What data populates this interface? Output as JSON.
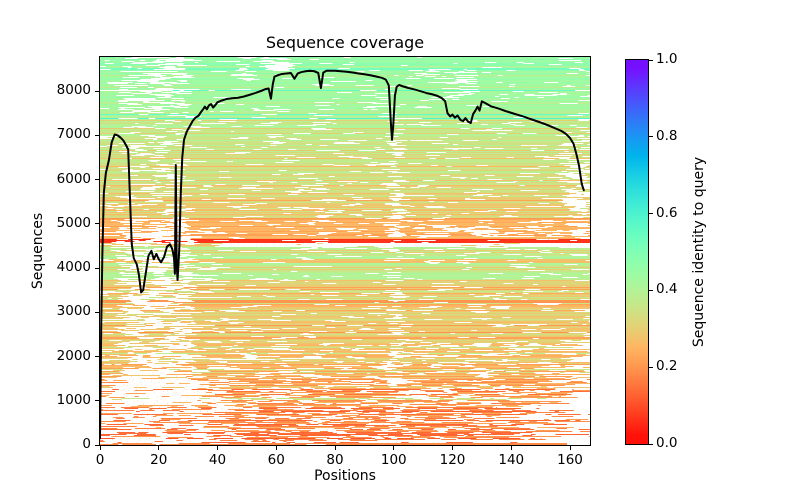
{
  "figure": {
    "title": "Sequence coverage",
    "xlabel": "Positions",
    "ylabel": "Sequences"
  },
  "colorbar": {
    "label": "Sequence identity to query",
    "tick_labels": [
      "0.0",
      "0.2",
      "0.4",
      "0.6",
      "0.8",
      "1.0"
    ],
    "vmin": 0.0,
    "vmax": 1.0
  },
  "chart_data": {
    "type": "heatmap",
    "subtype": "msa-coverage-with-line",
    "title": "Sequence coverage",
    "xlabel": "Positions",
    "ylabel": "Sequences",
    "colorbar_label": "Sequence identity to query",
    "colormap": "rainbow_r",
    "legend_position": "none",
    "grid": false,
    "xlim": [
      0,
      166.8
    ],
    "ylim": [
      0,
      8772
    ],
    "x_ticks": [
      0,
      20,
      40,
      60,
      80,
      100,
      120,
      140,
      160
    ],
    "y_ticks": [
      0,
      1000,
      2000,
      3000,
      4000,
      5000,
      6000,
      7000,
      8000
    ],
    "colorbar_ticks": [
      0,
      0.2,
      0.4,
      0.6,
      0.8,
      1
    ],
    "coverage_line": {
      "name": "number of sequences covering each position",
      "color": "#000000",
      "points": [
        [
          0,
          150
        ],
        [
          0.4,
          2600
        ],
        [
          0.8,
          4300
        ],
        [
          1.3,
          5700
        ],
        [
          2,
          6150
        ],
        [
          3,
          6430
        ],
        [
          4,
          6850
        ],
        [
          5,
          7020
        ],
        [
          6,
          7000
        ],
        [
          7,
          6950
        ],
        [
          8,
          6880
        ],
        [
          9,
          6760
        ],
        [
          9.6,
          6680
        ],
        [
          10.2,
          5600
        ],
        [
          10.8,
          4550
        ],
        [
          11.5,
          4220
        ],
        [
          12.5,
          4090
        ],
        [
          13.2,
          3870
        ],
        [
          14,
          3450
        ],
        [
          14.7,
          3500
        ],
        [
          15.5,
          3850
        ],
        [
          16.5,
          4280
        ],
        [
          17.5,
          4390
        ],
        [
          18.3,
          4200
        ],
        [
          19.2,
          4320
        ],
        [
          20,
          4200
        ],
        [
          20.8,
          4130
        ],
        [
          21.8,
          4250
        ],
        [
          22.8,
          4480
        ],
        [
          23.8,
          4540
        ],
        [
          24.6,
          4430
        ],
        [
          25.2,
          4230
        ],
        [
          25.5,
          3870
        ],
        [
          25.8,
          6330
        ],
        [
          26.1,
          4100
        ],
        [
          26.4,
          3730
        ],
        [
          27,
          4450
        ],
        [
          27.5,
          5700
        ],
        [
          28,
          6500
        ],
        [
          28.6,
          6900
        ],
        [
          29.5,
          7080
        ],
        [
          30.5,
          7200
        ],
        [
          31.5,
          7320
        ],
        [
          32.5,
          7400
        ],
        [
          33.5,
          7440
        ],
        [
          34.3,
          7520
        ],
        [
          35,
          7580
        ],
        [
          35.7,
          7650
        ],
        [
          36.4,
          7590
        ],
        [
          37.1,
          7680
        ],
        [
          37.8,
          7710
        ],
        [
          38.5,
          7630
        ],
        [
          39.2,
          7680
        ],
        [
          40,
          7750
        ],
        [
          41.5,
          7790
        ],
        [
          43,
          7820
        ],
        [
          45,
          7840
        ],
        [
          47,
          7850
        ],
        [
          49,
          7880
        ],
        [
          51,
          7920
        ],
        [
          53,
          7960
        ],
        [
          55,
          8010
        ],
        [
          56.5,
          8050
        ],
        [
          57.4,
          8060
        ],
        [
          58.2,
          7830
        ],
        [
          58.8,
          8150
        ],
        [
          59.4,
          8330
        ],
        [
          60.5,
          8360
        ],
        [
          62,
          8390
        ],
        [
          63.5,
          8400
        ],
        [
          65,
          8410
        ],
        [
          66.2,
          8280
        ],
        [
          67.3,
          8400
        ],
        [
          68.5,
          8430
        ],
        [
          70,
          8450
        ],
        [
          71.5,
          8460
        ],
        [
          73,
          8450
        ],
        [
          74.3,
          8410
        ],
        [
          75.2,
          8070
        ],
        [
          76,
          8420
        ],
        [
          77,
          8460
        ],
        [
          78.5,
          8460
        ],
        [
          80,
          8460
        ],
        [
          82,
          8450
        ],
        [
          84,
          8440
        ],
        [
          86,
          8420
        ],
        [
          88,
          8400
        ],
        [
          90,
          8380
        ],
        [
          92,
          8360
        ],
        [
          94,
          8330
        ],
        [
          96,
          8300
        ],
        [
          97.3,
          8260
        ],
        [
          98.3,
          8130
        ],
        [
          99,
          7300
        ],
        [
          99.4,
          6900
        ],
        [
          99.8,
          7200
        ],
        [
          100.4,
          7900
        ],
        [
          101,
          8100
        ],
        [
          101.8,
          8140
        ],
        [
          103,
          8110
        ],
        [
          105,
          8070
        ],
        [
          107,
          8040
        ],
        [
          109,
          8000
        ],
        [
          111,
          7960
        ],
        [
          113,
          7930
        ],
        [
          115,
          7890
        ],
        [
          116.4,
          7840
        ],
        [
          117.5,
          7770
        ],
        [
          118.3,
          7500
        ],
        [
          119.2,
          7430
        ],
        [
          120,
          7470
        ],
        [
          120.8,
          7400
        ],
        [
          121.7,
          7450
        ],
        [
          122.7,
          7350
        ],
        [
          123.6,
          7320
        ],
        [
          124.4,
          7390
        ],
        [
          125.3,
          7310
        ],
        [
          126.2,
          7280
        ],
        [
          127,
          7480
        ],
        [
          127.8,
          7560
        ],
        [
          128.5,
          7650
        ],
        [
          129.2,
          7560
        ],
        [
          130,
          7770
        ],
        [
          131.2,
          7730
        ],
        [
          133,
          7660
        ],
        [
          135.5,
          7610
        ],
        [
          138,
          7550
        ],
        [
          141,
          7490
        ],
        [
          144,
          7430
        ],
        [
          147,
          7360
        ],
        [
          150,
          7290
        ],
        [
          152.5,
          7230
        ],
        [
          155,
          7160
        ],
        [
          157,
          7100
        ],
        [
          158.5,
          7040
        ],
        [
          160,
          6940
        ],
        [
          161.2,
          6810
        ],
        [
          162.2,
          6570
        ],
        [
          163.1,
          6300
        ],
        [
          164,
          5900
        ],
        [
          164.7,
          5760
        ]
      ]
    },
    "identity_bands": [
      {
        "v": [
          0,
          120
        ],
        "id": [
          0.16,
          0.16
        ],
        "jit": 0.04,
        "gap": 0.5,
        "tail": {
          "frac": 1.0,
          "end": [
            60,
            160
          ]
        }
      },
      {
        "v": [
          120,
          1300
        ],
        "id": [
          0.15,
          0.24
        ],
        "jit": 0.05,
        "gap": 0.32,
        "low": {
          "f": 0.15,
          "d": -0.05
        },
        "hi": {
          "f": 0.07,
          "d": 0.12
        },
        "tail": {
          "frac": 0.85,
          "end": [
            135,
            168
          ]
        }
      },
      {
        "v": [
          1300,
          2300
        ],
        "id": [
          0.22,
          0.3
        ],
        "jit": 0.05,
        "gap": 0.22,
        "hi": {
          "f": 0.06,
          "d": 0.1
        },
        "tail": {
          "frac": 0.5,
          "end": [
            150,
            168
          ]
        }
      },
      {
        "v": [
          2300,
          3700
        ],
        "id": [
          0.3,
          0.33
        ],
        "jit": 0.04,
        "gap": 0.11,
        "low": {
          "f": 0.3,
          "d": -0.07
        },
        "tail": {
          "frac": 0.12,
          "end": [
            158,
            168
          ]
        }
      },
      {
        "v": [
          3700,
          4480
        ],
        "id": [
          0.38,
          0.38
        ],
        "jit": 0.035,
        "gap": 0.1,
        "low": {
          "f": 0.18,
          "d": -0.09
        }
      },
      {
        "v": [
          4480,
          4570
        ],
        "id": [
          0.3,
          0.3
        ],
        "jit": 0.03,
        "gap": 0.08
      },
      {
        "v": [
          4570,
          4660
        ],
        "id": [
          0.07,
          0.07
        ],
        "jit": 0.015,
        "gap": 0.04
      },
      {
        "v": [
          4660,
          5100
        ],
        "id": [
          0.24,
          0.24
        ],
        "jit": 0.03,
        "gap": 0.13
      },
      {
        "v": [
          5100,
          6000
        ],
        "id": [
          0.3,
          0.35
        ],
        "jit": 0.045,
        "gap": 0.1,
        "low": {
          "f": 0.25,
          "d": -0.06
        }
      },
      {
        "v": [
          6000,
          7350
        ],
        "id": [
          0.34,
          0.39
        ],
        "jit": 0.04,
        "gap": 0.09,
        "low": {
          "f": 0.2,
          "d": -0.06
        }
      },
      {
        "v": [
          7350,
          8772
        ],
        "id": [
          0.41,
          0.46
        ],
        "jit": 0.03,
        "gap": 0.07,
        "low": {
          "f": 0.1,
          "d": -0.05
        },
        "outlier": {
          "f": 0.05,
          "id": 0.56,
          "jit": 0.04
        }
      }
    ],
    "gap_clusters": [
      [
        7,
        32,
        900,
        5100,
        0.45
      ],
      [
        0,
        45,
        0,
        1500,
        0.3
      ],
      [
        8,
        30,
        5100,
        7500,
        0.18
      ],
      [
        8,
        30,
        7500,
        8772,
        0.42
      ],
      [
        44,
        52,
        8200,
        8772,
        0.3
      ],
      [
        55,
        65,
        8450,
        8772,
        0.5
      ],
      [
        99,
        102.5,
        300,
        7050,
        0.45
      ],
      [
        74,
        78,
        4600,
        6100,
        0.3
      ],
      [
        112,
        127,
        7900,
        8500,
        0.3
      ],
      [
        157,
        167,
        5400,
        7000,
        0.25
      ],
      [
        160,
        167,
        4400,
        6300,
        0.3
      ],
      [
        40,
        167,
        4480,
        4570,
        0.95
      ],
      [
        100,
        167,
        4700,
        4950,
        0.3
      ]
    ],
    "special_rows": [
      {
        "v": 4615,
        "th": 55,
        "id": 0.065
      },
      {
        "v": 3260,
        "th": 40,
        "id": 0.2
      },
      {
        "v": 30,
        "th": 40,
        "id": 0.18,
        "end": 159
      }
    ],
    "seed": 20
  }
}
